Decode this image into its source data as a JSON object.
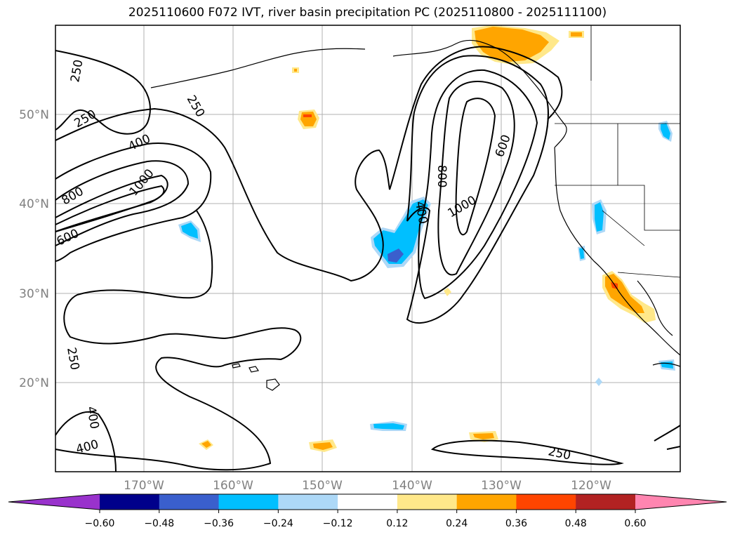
{
  "title": "2025110600 F072 IVT, river basin precipitation PC (2025110800 - 2025111100)",
  "map": {
    "lon_range": [
      -180,
      -110
    ],
    "lat_range": [
      10,
      60
    ],
    "lat_labels": [
      "50°N",
      "40°N",
      "30°N",
      "20°N"
    ],
    "lon_labels": [
      "170°W",
      "160°W",
      "150°W",
      "140°W",
      "130°W",
      "120°W"
    ],
    "contour_labels": [
      "250",
      "250",
      "250",
      "250",
      "250",
      "400",
      "400",
      "400",
      "400",
      "600",
      "600",
      "800",
      "800",
      "1000",
      "1000"
    ]
  },
  "colorbar": {
    "ticks": [
      "−0.60",
      "−0.48",
      "−0.36",
      "−0.24",
      "−0.12",
      "0.12",
      "0.24",
      "0.36",
      "0.48",
      "0.60"
    ],
    "colors": [
      "#9932cc",
      "#00008b",
      "#3a5fcd",
      "#00bfff",
      "#add8f7",
      "#ffffff",
      "#ffe88a",
      "#ffa500",
      "#ff4500",
      "#b22222",
      "#ff85b0"
    ]
  }
}
